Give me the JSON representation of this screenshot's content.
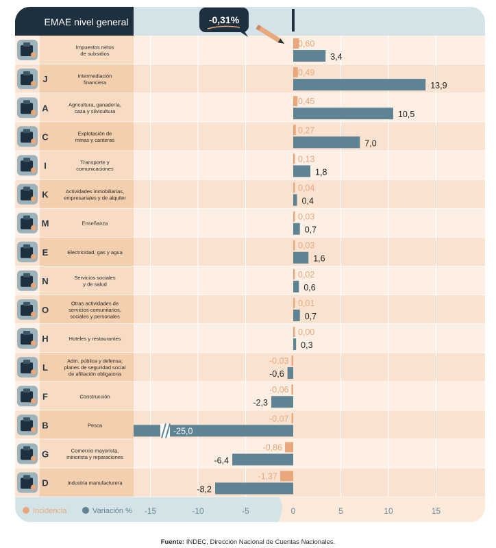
{
  "header": {
    "title": "EMAE nivel general",
    "total": "-0,31%"
  },
  "colors": {
    "incidencia": "#e8a87c",
    "variacion": "#5e8393",
    "dark": "#1e2f3d",
    "light_blue": "#d3e3e8",
    "row_light": "#fdefe3",
    "row_dark": "#f9e3d0",
    "code_light": "#f7dcc3",
    "code_dark": "#f3cfae"
  },
  "legend": {
    "incidencia": "Incidencia",
    "variacion": "Variación %"
  },
  "source": {
    "prefix": "Fuente:",
    "text": " INDEC, Dirección Nacional de Cuentas Nacionales."
  },
  "chart_data": {
    "type": "bar",
    "orientation": "horizontal",
    "xlim": [
      -17,
      20
    ],
    "x_ticks": [
      -15,
      -10,
      -5,
      0,
      5,
      10,
      15
    ],
    "x_tick_labels": [
      "-15",
      "-10",
      "-5",
      "0",
      "5",
      "10",
      "15"
    ],
    "grid": true,
    "legend_position": "bottom-left",
    "categories": [
      {
        "code": "",
        "icon": "coins-icon",
        "label": [
          "Impuestos netos",
          "de subsidios"
        ],
        "incidencia": 0.6,
        "incidencia_label": "0,60",
        "variacion": 3.4,
        "variacion_label": "3,4"
      },
      {
        "code": "J",
        "icon": "bank-icon",
        "label": [
          "Intermediación",
          "financiera"
        ],
        "incidencia": 0.49,
        "incidencia_label": "0,49",
        "variacion": 13.9,
        "variacion_label": "13,9"
      },
      {
        "code": "A",
        "icon": "farm-icon",
        "label": [
          "Agricultura, ganadería,",
          "caza y silvicultura"
        ],
        "incidencia": 0.45,
        "incidencia_label": "0,45",
        "variacion": 10.5,
        "variacion_label": "10,5"
      },
      {
        "code": "C",
        "icon": "oil-pump-icon",
        "label": [
          "Explotación de",
          "minas y canteras"
        ],
        "incidencia": 0.27,
        "incidencia_label": "0,27",
        "variacion": 7.0,
        "variacion_label": "7,0"
      },
      {
        "code": "I",
        "icon": "antenna-icon",
        "label": [
          "Transporte y",
          "comunicaciones"
        ],
        "incidencia": 0.13,
        "incidencia_label": "0,13",
        "variacion": 1.8,
        "variacion_label": "1,8"
      },
      {
        "code": "K",
        "icon": "realestate-icon",
        "label": [
          "Actividades inmobiliarias,",
          "empresariales y de alquiler"
        ],
        "incidencia": 0.04,
        "incidencia_label": "0,04",
        "variacion": 0.4,
        "variacion_label": "0,4"
      },
      {
        "code": "M",
        "icon": "blackboard-icon",
        "label": [
          "Enseñanza"
        ],
        "incidencia": 0.03,
        "incidencia_label": "0,03",
        "variacion": 0.7,
        "variacion_label": "0,7"
      },
      {
        "code": "E",
        "icon": "power-icon",
        "label": [
          "Electricidad, gas y agua"
        ],
        "incidencia": 0.03,
        "incidencia_label": "0,03",
        "variacion": 1.6,
        "variacion_label": "1,6"
      },
      {
        "code": "N",
        "icon": "health-icon",
        "label": [
          "Servicios sociales",
          "y de salud"
        ],
        "incidencia": 0.02,
        "incidencia_label": "0,02",
        "variacion": 0.6,
        "variacion_label": "0,6"
      },
      {
        "code": "O",
        "icon": "services-icon",
        "label": [
          "Otras actividades de",
          "servicios comunitarios,",
          "sociales y personales"
        ],
        "incidencia": 0.01,
        "incidencia_label": "0,01",
        "variacion": 0.7,
        "variacion_label": "0,7"
      },
      {
        "code": "H",
        "icon": "hotel-icon",
        "label": [
          "Hoteles y restaurantes"
        ],
        "incidencia": 0.0,
        "incidencia_label": "0,00",
        "variacion": 0.3,
        "variacion_label": "0,3"
      },
      {
        "code": "L",
        "icon": "government-icon",
        "label": [
          "Adm. pública y defensa;",
          "planes de seguridad social",
          "de afiliación obligatoria"
        ],
        "incidencia": -0.03,
        "incidencia_label": "-0,03",
        "variacion": -0.6,
        "variacion_label": "-0,6"
      },
      {
        "code": "F",
        "icon": "truck-icon",
        "label": [
          "Construcción"
        ],
        "incidencia": -0.06,
        "incidencia_label": "-0,06",
        "variacion": -2.3,
        "variacion_label": "-2,3"
      },
      {
        "code": "B",
        "icon": "fish-icon",
        "label": [
          "Pesca"
        ],
        "incidencia": -0.07,
        "incidencia_label": "-0,07",
        "variacion": -25.0,
        "variacion_label": "-25,0",
        "truncated": true
      },
      {
        "code": "G",
        "icon": "store-icon",
        "label": [
          "Comercio mayorista,",
          "minorista y reparaciones"
        ],
        "incidencia": -0.86,
        "incidencia_label": "-0,86",
        "variacion": -6.4,
        "variacion_label": "-6,4"
      },
      {
        "code": "D",
        "icon": "gears-icon",
        "label": [
          "Industria manufacturera"
        ],
        "incidencia": -1.37,
        "incidencia_label": "-1,37",
        "variacion": -8.2,
        "variacion_label": "-8,2"
      }
    ]
  }
}
